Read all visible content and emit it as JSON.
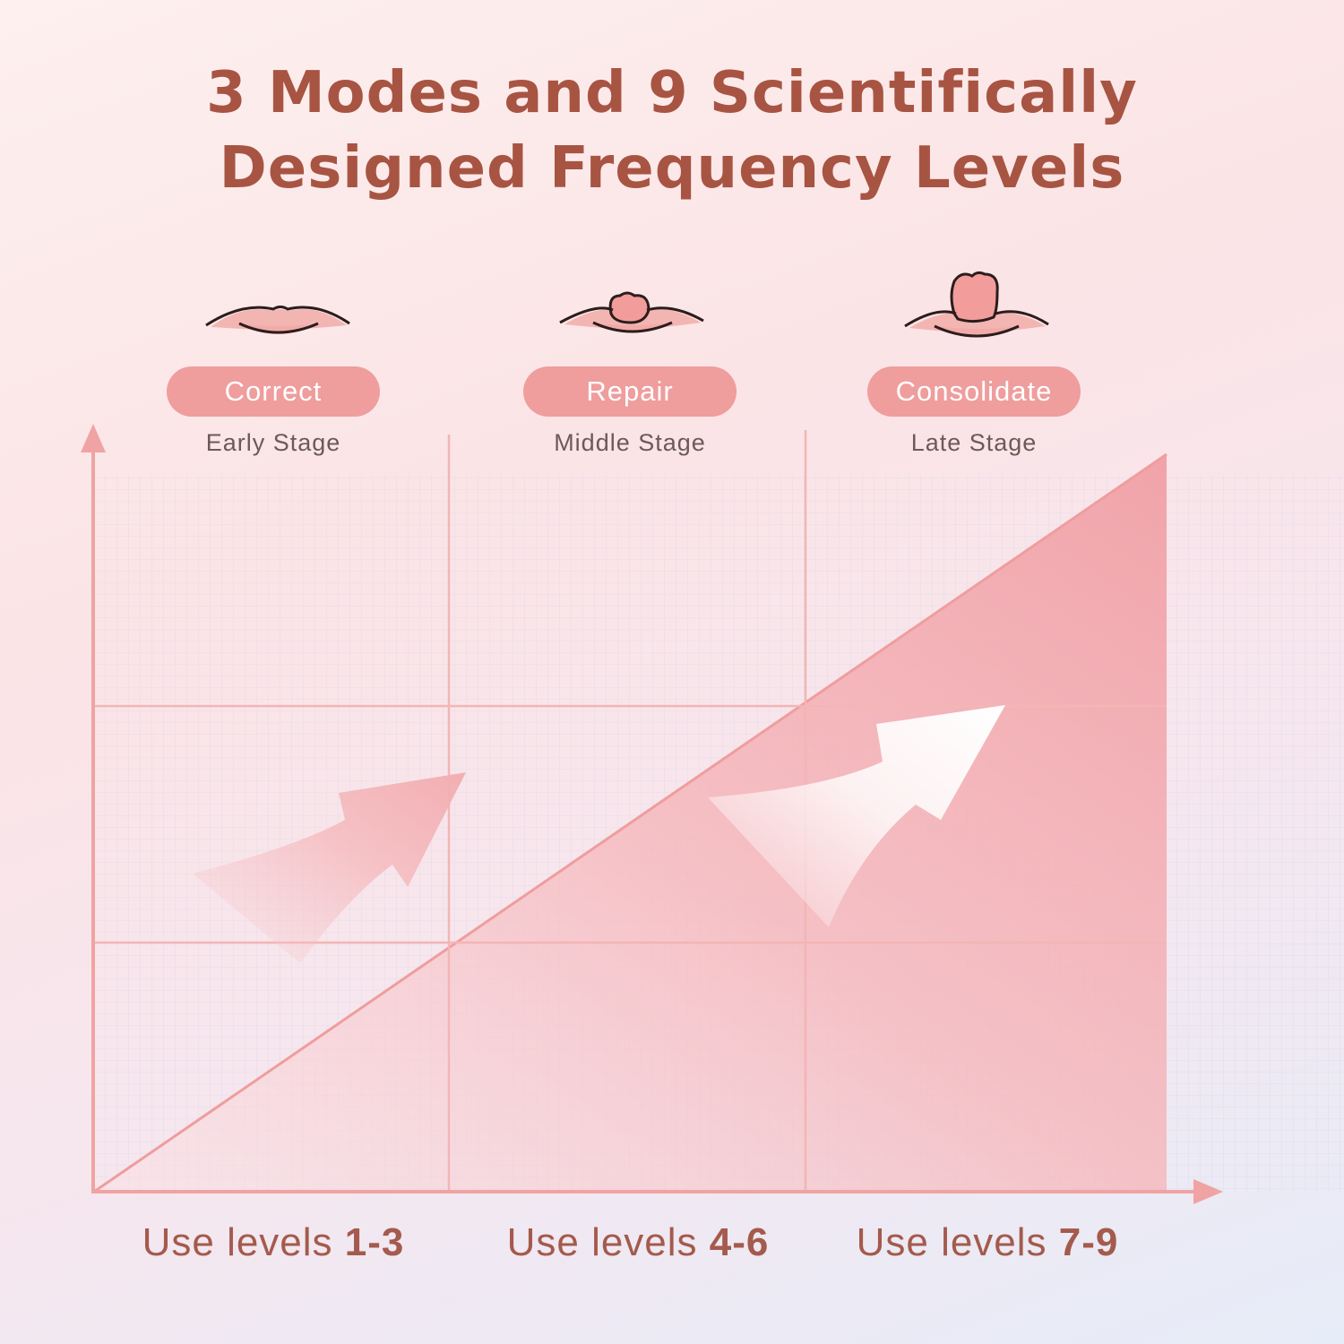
{
  "title": {
    "line1": "3 Modes and 9 Scientifically",
    "line2": "Designed Frequency Levels"
  },
  "modes": [
    {
      "name": "Correct",
      "stage": "Early Stage",
      "level_prefix": "Use levels",
      "levels": "1-3",
      "icon": "lips-closed-icon"
    },
    {
      "name": "Repair",
      "stage": "Middle Stage",
      "level_prefix": "Use levels",
      "levels": "4-6",
      "icon": "lips-small-tongue-icon"
    },
    {
      "name": "Consolidate",
      "stage": "Late Stage",
      "level_prefix": "Use levels",
      "levels": "7-9",
      "icon": "lips-large-tongue-icon"
    }
  ],
  "colors": {
    "title": "#a85443",
    "pill": "#ef9d9d",
    "axis": "#f0a3a3",
    "fill": "#f2a6aa",
    "level_text": "#a45a4c"
  }
}
